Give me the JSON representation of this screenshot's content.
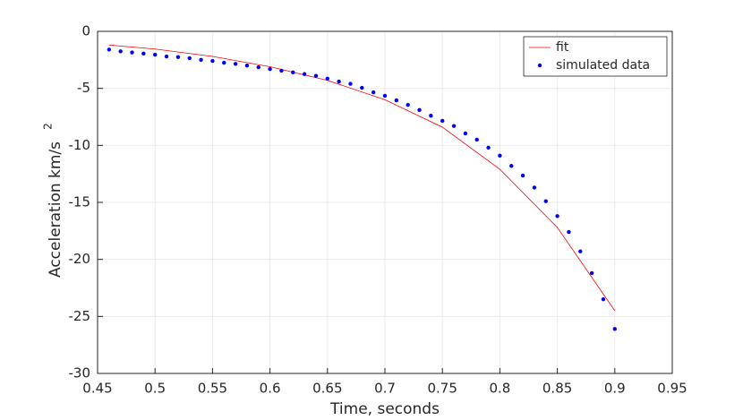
{
  "chart_data": {
    "type": "line",
    "xlabel": "Time, seconds",
    "ylabel": "Acceleration km/s",
    "ylabel_superscript": "2",
    "xlim": [
      0.45,
      0.95
    ],
    "xticks": [
      0.45,
      0.5,
      0.55,
      0.6,
      0.65,
      0.7,
      0.75,
      0.8,
      0.85,
      0.9,
      0.95
    ],
    "ylim": [
      -30,
      0
    ],
    "yticks": [
      -30,
      -25,
      -20,
      -15,
      -10,
      -5,
      0
    ],
    "grid": true,
    "legend": "top-right",
    "series": [
      {
        "name": "fit",
        "color": "#ff0000",
        "style": "line",
        "x": [
          0.46,
          0.5,
          0.55,
          0.6,
          0.65,
          0.7,
          0.75,
          0.8,
          0.85,
          0.9
        ],
        "values": [
          -1.2,
          -1.55,
          -2.2,
          -3.1,
          -4.3,
          -6.0,
          -8.4,
          -12.1,
          -17.2,
          -24.5
        ]
      },
      {
        "name": "simulated data",
        "color": "#0000ff",
        "style": "markers",
        "x": [
          0.46,
          0.47,
          0.48,
          0.49,
          0.5,
          0.51,
          0.52,
          0.53,
          0.54,
          0.55,
          0.56,
          0.57,
          0.58,
          0.59,
          0.6,
          0.61,
          0.62,
          0.63,
          0.64,
          0.65,
          0.66,
          0.67,
          0.68,
          0.69,
          0.7,
          0.71,
          0.72,
          0.73,
          0.74,
          0.75,
          0.76,
          0.77,
          0.78,
          0.79,
          0.8,
          0.81,
          0.82,
          0.83,
          0.84,
          0.85,
          0.86,
          0.87,
          0.88,
          0.89,
          0.9
        ],
        "values": [
          -1.6,
          -1.75,
          -1.85,
          -1.95,
          -2.05,
          -2.2,
          -2.25,
          -2.35,
          -2.5,
          -2.6,
          -2.75,
          -2.85,
          -3.0,
          -3.15,
          -3.3,
          -3.45,
          -3.6,
          -3.75,
          -3.9,
          -4.15,
          -4.4,
          -4.6,
          -4.95,
          -5.35,
          -5.65,
          -6.05,
          -6.45,
          -6.9,
          -7.4,
          -7.85,
          -8.3,
          -8.95,
          -9.5,
          -10.2,
          -10.9,
          -11.8,
          -12.65,
          -13.7,
          -14.9,
          -16.2,
          -17.6,
          -19.3,
          -21.2,
          -23.5,
          -26.1
        ]
      }
    ]
  }
}
